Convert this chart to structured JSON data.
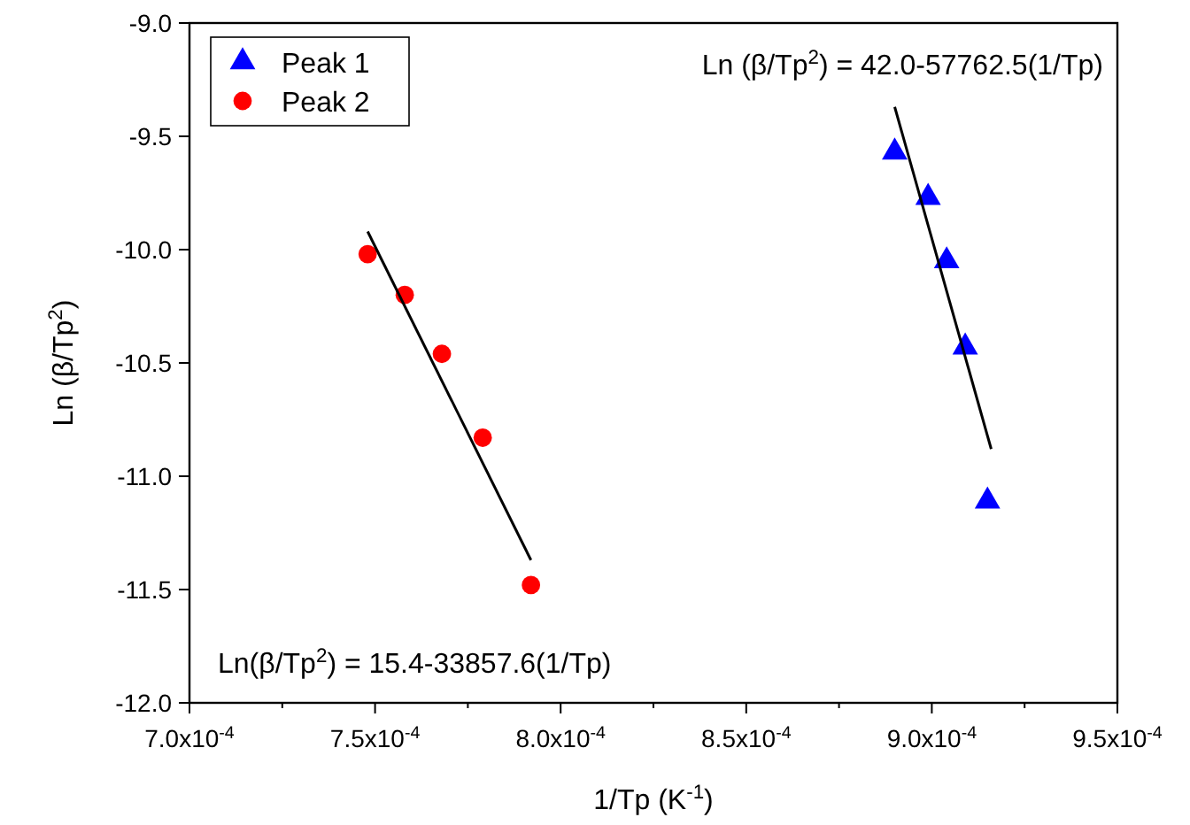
{
  "chart_data": {
    "type": "scatter",
    "xlabel": "1/Tp (K$^{-1}$)",
    "ylabel": "Ln (β/Tp$^{2}$)",
    "xlim": [
      0.0007,
      0.00095
    ],
    "xticks": [
      {
        "value": 0.0007,
        "label": "7.0x10$^{-4}$"
      },
      {
        "value": 0.000725,
        "label": null
      },
      {
        "value": 0.00075,
        "label": "7.5x10$^{-4}$"
      },
      {
        "value": 0.000775,
        "label": null
      },
      {
        "value": 0.0008,
        "label": "8.0x10$^{-4}$"
      },
      {
        "value": 0.000825,
        "label": null
      },
      {
        "value": 0.00085,
        "label": "8.5x10$^{-4}$"
      },
      {
        "value": 0.000875,
        "label": null
      },
      {
        "value": 0.0009,
        "label": "9.0x10$^{-4}$"
      },
      {
        "value": 0.000925,
        "label": null
      },
      {
        "value": 0.00095,
        "label": "9.5x10$^{-4}$"
      }
    ],
    "ylim": [
      -12,
      -9
    ],
    "yticks": [
      {
        "value": -12,
        "label": "-12.0"
      },
      {
        "value": -11.5,
        "label": "-11.5"
      },
      {
        "value": -11,
        "label": "-11.0"
      },
      {
        "value": -10.5,
        "label": "-10.5"
      },
      {
        "value": -10,
        "label": "-10.0"
      },
      {
        "value": -9.5,
        "label": "-9.5"
      },
      {
        "value": -9,
        "label": "-9.0"
      }
    ],
    "grid": false,
    "legend": "top left",
    "series": [
      {
        "name": "Peak 1",
        "color": "#0000ff",
        "marker": "triangle",
        "x": [
          0.00089,
          0.000899,
          0.000904,
          0.000909,
          0.000915
        ],
        "values": [
          -9.57,
          -9.77,
          -10.05,
          -10.43,
          -11.11
        ]
      },
      {
        "name": "Peak 2",
        "color": "#ff0000",
        "marker": "circle",
        "x": [
          0.000748,
          0.000758,
          0.000768,
          0.000779,
          0.000792
        ],
        "values": [
          -10.02,
          -10.2,
          -10.46,
          -10.83,
          -11.48
        ]
      },
      {
        "type": "line",
        "color": "#000000",
        "marker": "none",
        "x": [
          0.00089,
          0.000916
        ],
        "values": [
          -9.37,
          -10.88
        ]
      },
      {
        "type": "line",
        "color": "#000000",
        "marker": "none",
        "x": [
          0.000748,
          0.000792
        ],
        "values": [
          -9.92,
          -11.37
        ]
      }
    ],
    "annotations": [
      "Ln (β/Tp$^{2}$) = 42.0-57762.5(1/Tp)",
      "Ln(β/Tp$^{2}$) = 15.4-33857.6(1/Tp)"
    ]
  }
}
